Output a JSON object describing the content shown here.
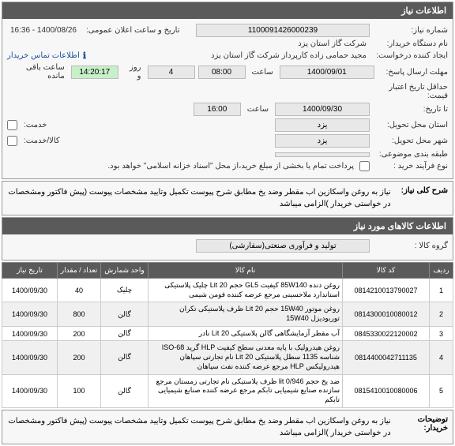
{
  "colors": {
    "header_bg": "#5a5a5a",
    "header_fg": "#ffffff",
    "box_bg": "#e8e8e8",
    "countdown_bg": "#c8f0c8",
    "link": "#1a4fa0"
  },
  "panel": {
    "title": "اطلاعات نیاز",
    "need_no_label": "شماره نیاز:",
    "need_no": "1100091426000239",
    "public_ts_label": "تاریخ و ساعت اعلان عمومی:",
    "public_ts": "1400/08/26 - 16:36",
    "buyer_org_label": "نام دستگاه خریدار:",
    "buyer_org": "شرکت گاز استان یزد",
    "requester_label": "ایجاد کننده درخواست:",
    "requester": "مجید حمامی زاده کارپرداز شرکت گاز استان یزد",
    "contact_link": "اطلاعات تماس خریدار",
    "reply_deadline_label": "مهلت ارسال پاسخ:",
    "reply_deadline_date": "1400/09/01",
    "time_label": "ساعت",
    "reply_deadline_time": "08:00",
    "remaining_label": "روز و",
    "remaining_days": "4",
    "countdown": "14:20:17",
    "remaining_suffix": "ساعت باقی مانده",
    "valid_price_label": "حداقل تاریخ اعتبار قیمت:",
    "valid_to_label": "تا تاریخ:",
    "valid_to_date": "1400/09/30",
    "valid_to_time": "16:00",
    "province_label": "استان محل تحویل:",
    "province": "یزد",
    "service_label": "خدمت:",
    "city_label": "شهر محل تحویل:",
    "city": "یزد",
    "goods_service_label": "کالا/خدمت:",
    "multi_label": "طبقه بندی موضوعی:",
    "multi_value": "",
    "process_label": "نوع فرآیند خرید :",
    "process_note": "پرداخت تمام یا بخشی از مبلغ خرید،از محل \"اسناد خزانه اسلامی\" خواهد بود."
  },
  "summary": {
    "title": "شرح کلی نیاز:",
    "text": "نیاز به روغن واسکازین اب مقطر وضد یخ مطابق شرح پیوست تکمیل وتایید مشخصات پیوست (پیش فاکتور ومشخصات در خواستی خریدار )الزامی میباشد"
  },
  "items_header": {
    "title": "اطلاعات کالاهای مورد نیاز",
    "group_label": "گروه کالا :",
    "group_value": "تولید و فرآوری صنعتی(سفارشی)"
  },
  "table": {
    "columns": [
      "ردیف",
      "کد کالا",
      "نام کالا",
      "واحد شمارش",
      "تعداد / مقدار",
      "تاریخ نیاز"
    ],
    "col_widths": [
      "30px",
      "110px",
      "auto",
      "60px",
      "55px",
      "70px"
    ],
    "rows": [
      {
        "idx": "1",
        "code": "0814210013790027",
        "name": "روغن دنده 85W140 کیفیت GL5 حجم 20 Lit چلیک پلاستیکی استاندارد ملاحسینی مرجع عرضه کننده فومن شیمی",
        "unit": "چلیک",
        "qty": "40",
        "date": "1400/09/30"
      },
      {
        "idx": "2",
        "code": "0814300010080012",
        "name": "روغن موتور 15W40 حجم 20 Lit ظرف پلاستیکی تکران توربودیزل 15W40",
        "unit": "گالن",
        "qty": "800",
        "date": "1400/09/30"
      },
      {
        "idx": "3",
        "code": "0845330022120002",
        "name": "آب مقطر آزمایشگاهی گالن پلاستیکی 20 Lit نادر",
        "unit": "گالن",
        "qty": "200",
        "date": "1400/09/30"
      },
      {
        "idx": "4",
        "code": "0814400042711135",
        "name": "روغن هیدرولیک با پایه معدنی سطح کیفیت HLP گرید ISO-68 شناسه 1135 سطل پلاستیکی 20 Lit نام تجارتی سپاهان هیدرولیکس HLP مرجع عرضه کننده نفت سپاهان",
        "unit": "گالن",
        "qty": "200",
        "date": "1400/09/30"
      },
      {
        "idx": "5",
        "code": "0815410010080006",
        "name": "ضد یخ حجم 0/946 lit ظرف پلاستیکی نام تجارتی زمستان مرجع سازنده صنایع شیمیایی تابکم مرجع عرضه کننده صنایع شیمیایی تابکم",
        "unit": "گالن",
        "qty": "100",
        "date": "1400/09/30"
      }
    ]
  },
  "desc": {
    "label": "توضیحات خریدار:",
    "text": "نیاز به روغن واسکازین اب مقطر وضد یخ مطابق شرح پیوست تکمیل وتایید مشخصات پیوست (پیش فاکتور ومشخصات در خواستی خریدار )الزامی میباشد"
  }
}
